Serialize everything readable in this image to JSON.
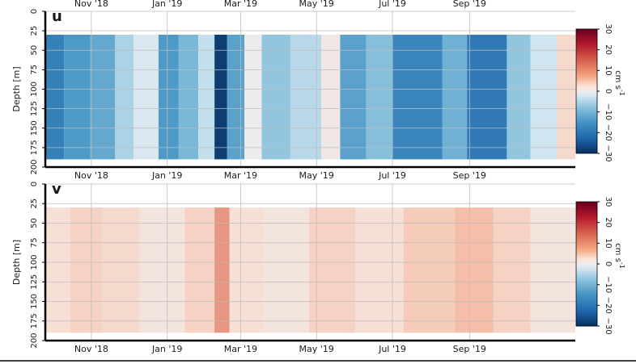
{
  "chart_data": [
    {
      "type": "heatmap",
      "panel_label": "u",
      "ylabel": "Depth [m]",
      "yticks": [
        0,
        25,
        50,
        75,
        100,
        125,
        150,
        175,
        200
      ],
      "ylim": [
        200,
        0
      ],
      "xticks": [
        "Nov '18",
        "Jan '19",
        "Mar '19",
        "May '19",
        "Jul '19",
        "Sep '19"
      ],
      "xlim": [
        "2018-09-25",
        "2019-11-25"
      ],
      "data_depth_range": [
        30,
        190
      ],
      "colorbar": {
        "ticks": [
          30,
          20,
          10,
          0,
          -10,
          -20,
          -30
        ],
        "label": "cm s",
        "label_superscript": "-1",
        "range": [
          -30,
          30
        ]
      },
      "bands": [
        {
          "start": "2018-09-25",
          "end": "2018-10-10",
          "value": -18
        },
        {
          "start": "2018-10-10",
          "end": "2018-10-31",
          "value": -14
        },
        {
          "start": "2018-10-31",
          "end": "2018-11-20",
          "value": -12
        },
        {
          "start": "2018-11-20",
          "end": "2018-12-05",
          "value": -6
        },
        {
          "start": "2018-12-05",
          "end": "2018-12-25",
          "value": -2
        },
        {
          "start": "2018-12-25",
          "end": "2019-01-10",
          "value": -14
        },
        {
          "start": "2019-01-10",
          "end": "2019-01-26",
          "value": -10
        },
        {
          "start": "2019-01-26",
          "end": "2019-02-08",
          "value": -4
        },
        {
          "start": "2019-02-08",
          "end": "2019-02-18",
          "value": -28
        },
        {
          "start": "2019-02-18",
          "end": "2019-03-04",
          "value": -13
        },
        {
          "start": "2019-03-04",
          "end": "2019-03-18",
          "value": 0
        },
        {
          "start": "2019-03-18",
          "end": "2019-04-10",
          "value": -8
        },
        {
          "start": "2019-04-10",
          "end": "2019-05-05",
          "value": -5
        },
        {
          "start": "2019-05-05",
          "end": "2019-05-20",
          "value": 1
        },
        {
          "start": "2019-05-20",
          "end": "2019-06-10",
          "value": -13
        },
        {
          "start": "2019-06-10",
          "end": "2019-07-01",
          "value": -9
        },
        {
          "start": "2019-07-01",
          "end": "2019-08-10",
          "value": -17
        },
        {
          "start": "2019-08-10",
          "end": "2019-08-30",
          "value": -11
        },
        {
          "start": "2019-08-30",
          "end": "2019-10-01",
          "value": -19
        },
        {
          "start": "2019-10-01",
          "end": "2019-10-20",
          "value": -8
        },
        {
          "start": "2019-10-20",
          "end": "2019-11-10",
          "value": -3
        },
        {
          "start": "2019-11-10",
          "end": "2019-11-25",
          "value": 4
        }
      ]
    },
    {
      "type": "heatmap",
      "panel_label": "v",
      "ylabel": "Depth [m]",
      "yticks": [
        0,
        25,
        50,
        75,
        100,
        125,
        150,
        175,
        200
      ],
      "ylim": [
        200,
        0
      ],
      "xticks": [
        "Nov '18",
        "Jan '19",
        "Mar '19",
        "May '19",
        "Jul '19",
        "Sep '19"
      ],
      "xlim": [
        "2018-09-25",
        "2019-11-25"
      ],
      "data_depth_range": [
        30,
        190
      ],
      "colorbar": {
        "ticks": [
          30,
          20,
          10,
          0,
          -10,
          -20,
          -30
        ],
        "label": "cm s",
        "label_superscript": "-1",
        "range": [
          -30,
          30
        ]
      },
      "bands": [
        {
          "start": "2018-09-25",
          "end": "2018-10-15",
          "value": 3
        },
        {
          "start": "2018-10-15",
          "end": "2018-11-10",
          "value": 5
        },
        {
          "start": "2018-11-10",
          "end": "2018-12-10",
          "value": 4
        },
        {
          "start": "2018-12-10",
          "end": "2019-01-15",
          "value": 2
        },
        {
          "start": "2019-01-15",
          "end": "2019-02-08",
          "value": 5
        },
        {
          "start": "2019-02-08",
          "end": "2019-02-20",
          "value": 11
        },
        {
          "start": "2019-02-20",
          "end": "2019-03-20",
          "value": 3
        },
        {
          "start": "2019-03-20",
          "end": "2019-04-25",
          "value": 2
        },
        {
          "start": "2019-04-25",
          "end": "2019-06-01",
          "value": 5
        },
        {
          "start": "2019-06-01",
          "end": "2019-07-10",
          "value": 3
        },
        {
          "start": "2019-07-10",
          "end": "2019-08-20",
          "value": 6
        },
        {
          "start": "2019-08-20",
          "end": "2019-09-20",
          "value": 8
        },
        {
          "start": "2019-09-20",
          "end": "2019-10-20",
          "value": 5
        },
        {
          "start": "2019-10-20",
          "end": "2019-11-25",
          "value": 2
        }
      ]
    }
  ]
}
